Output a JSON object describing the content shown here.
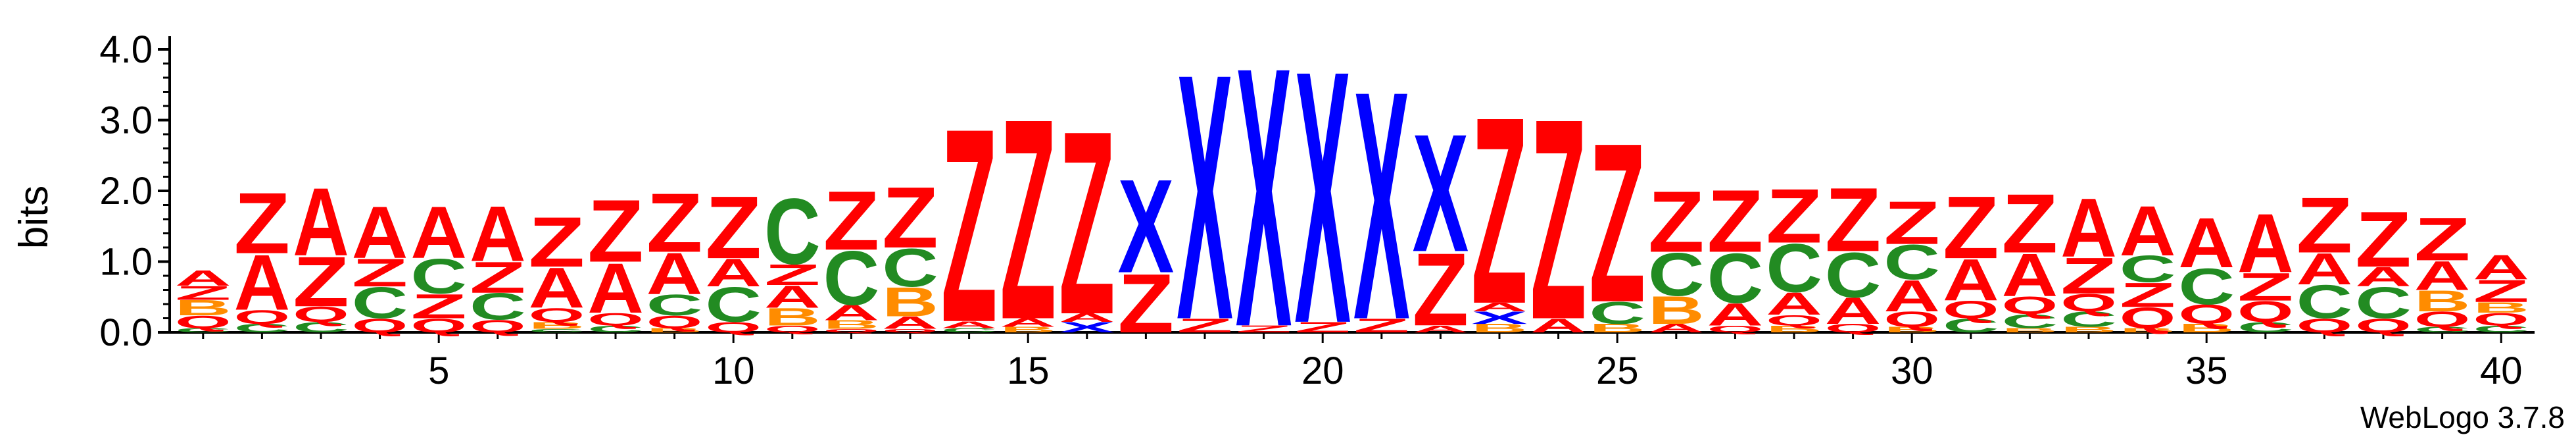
{
  "chart_data": {
    "type": "sequence-logo",
    "ylabel": "bits",
    "ylim": [
      0,
      4.0
    ],
    "y_ticks": [
      "0.0",
      "1.0",
      "2.0",
      "3.0",
      "4.0"
    ],
    "x_ticks": [
      5,
      10,
      15,
      20,
      25,
      30,
      35,
      40
    ],
    "positions": 40,
    "credit": "WebLogo 3.7.8",
    "colors": {
      "A": "#ff0000",
      "Z": "#ff0000",
      "C": "#228b22",
      "Q": "#ff0000",
      "B": "#ff8c00",
      "X": "#0000ff"
    },
    "columns": [
      {
        "pos": 1,
        "letters": [
          [
            "C",
            0.06
          ],
          [
            "Q",
            0.18
          ],
          [
            "B",
            0.22
          ],
          [
            "Z",
            0.2
          ],
          [
            "A",
            0.22
          ]
        ]
      },
      {
        "pos": 2,
        "letters": [
          [
            "C",
            0.12
          ],
          [
            "Q",
            0.2
          ],
          [
            "A",
            0.8
          ],
          [
            "Z",
            0.88
          ]
        ]
      },
      {
        "pos": 3,
        "letters": [
          [
            "C",
            0.15
          ],
          [
            "Q",
            0.22
          ],
          [
            "Z",
            0.72
          ],
          [
            "A",
            0.98
          ]
        ]
      },
      {
        "pos": 4,
        "letters": [
          [
            "Q",
            0.2
          ],
          [
            "C",
            0.45
          ],
          [
            "Z",
            0.4
          ],
          [
            "A",
            0.75
          ]
        ]
      },
      {
        "pos": 5,
        "letters": [
          [
            "Q",
            0.2
          ],
          [
            "Z",
            0.35
          ],
          [
            "C",
            0.5
          ],
          [
            "A",
            0.75
          ]
        ]
      },
      {
        "pos": 6,
        "letters": [
          [
            "Q",
            0.18
          ],
          [
            "C",
            0.38
          ],
          [
            "Z",
            0.45
          ],
          [
            "A",
            0.8
          ]
        ]
      },
      {
        "pos": 7,
        "letters": [
          [
            "C",
            0.05
          ],
          [
            "B",
            0.1
          ],
          [
            "Q",
            0.2
          ],
          [
            "A",
            0.58
          ],
          [
            "Z",
            0.72
          ]
        ]
      },
      {
        "pos": 8,
        "letters": [
          [
            "C",
            0.1
          ],
          [
            "Q",
            0.18
          ],
          [
            "A",
            0.72
          ],
          [
            "Z",
            0.9
          ]
        ]
      },
      {
        "pos": 9,
        "letters": [
          [
            "B",
            0.06
          ],
          [
            "Q",
            0.18
          ],
          [
            "C",
            0.3
          ],
          [
            "A",
            0.6
          ],
          [
            "Z",
            0.85
          ]
        ]
      },
      {
        "pos": 10,
        "letters": [
          [
            "Q",
            0.15
          ],
          [
            "C",
            0.5
          ],
          [
            "A",
            0.4
          ],
          [
            "Z",
            0.9
          ]
        ]
      },
      {
        "pos": 11,
        "letters": [
          [
            "Q",
            0.1
          ],
          [
            "B",
            0.25
          ],
          [
            "A",
            0.32
          ],
          [
            "Z",
            0.3
          ],
          [
            "C",
            0.95
          ]
        ]
      },
      {
        "pos": 12,
        "letters": [
          [
            "Q",
            0.05
          ],
          [
            "B",
            0.12
          ],
          [
            "A",
            0.22
          ],
          [
            "C",
            0.78
          ],
          [
            "Z",
            0.85
          ]
        ]
      },
      {
        "pos": 13,
        "letters": [
          [
            "Q",
            0.05
          ],
          [
            "A",
            0.18
          ],
          [
            "B",
            0.42
          ],
          [
            "C",
            0.55
          ],
          [
            "Z",
            0.88
          ]
        ]
      },
      {
        "pos": 14,
        "letters": [
          [
            "C",
            0.06
          ],
          [
            "A",
            0.1
          ],
          [
            "Z",
            2.8
          ]
        ]
      },
      {
        "pos": 15,
        "letters": [
          [
            "B",
            0.08
          ],
          [
            "A",
            0.12
          ],
          [
            "Z",
            2.9
          ]
        ]
      },
      {
        "pos": 16,
        "letters": [
          [
            "X",
            0.15
          ],
          [
            "A",
            0.12
          ],
          [
            "Z",
            2.65
          ]
        ]
      },
      {
        "pos": 17,
        "letters": [
          [
            "Z",
            0.85
          ],
          [
            "X",
            1.35
          ]
        ]
      },
      {
        "pos": 18,
        "letters": [
          [
            "Z",
            0.2
          ],
          [
            "X",
            3.55
          ]
        ]
      },
      {
        "pos": 19,
        "letters": [
          [
            "Z",
            0.1
          ],
          [
            "X",
            3.75
          ]
        ]
      },
      {
        "pos": 20,
        "letters": [
          [
            "Z",
            0.15
          ],
          [
            "X",
            3.65
          ]
        ]
      },
      {
        "pos": 21,
        "letters": [
          [
            "Z",
            0.2
          ],
          [
            "X",
            3.3
          ]
        ]
      },
      {
        "pos": 22,
        "letters": [
          [
            "A",
            0.1
          ],
          [
            "Z",
            1.05
          ],
          [
            "X",
            1.7
          ]
        ]
      },
      {
        "pos": 23,
        "letters": [
          [
            "B",
            0.12
          ],
          [
            "X",
            0.18
          ],
          [
            "A",
            0.12
          ],
          [
            "Z",
            2.7
          ]
        ]
      },
      {
        "pos": 24,
        "letters": [
          [
            "A",
            0.2
          ],
          [
            "Z",
            2.9
          ]
        ]
      },
      {
        "pos": 25,
        "letters": [
          [
            "B",
            0.12
          ],
          [
            "C",
            0.32
          ],
          [
            "Z",
            2.3
          ]
        ]
      },
      {
        "pos": 26,
        "letters": [
          [
            "A",
            0.12
          ],
          [
            "B",
            0.4
          ],
          [
            "C",
            0.62
          ],
          [
            "Z",
            0.88
          ]
        ]
      },
      {
        "pos": 27,
        "letters": [
          [
            "Q",
            0.1
          ],
          [
            "A",
            0.32
          ],
          [
            "C",
            0.72
          ],
          [
            "Z",
            0.9
          ]
        ]
      },
      {
        "pos": 28,
        "letters": [
          [
            "B",
            0.1
          ],
          [
            "Q",
            0.15
          ],
          [
            "A",
            0.32
          ],
          [
            "C",
            0.7
          ],
          [
            "Z",
            0.78
          ]
        ]
      },
      {
        "pos": 29,
        "letters": [
          [
            "Q",
            0.12
          ],
          [
            "A",
            0.38
          ],
          [
            "C",
            0.65
          ],
          [
            "Z",
            0.92
          ]
        ]
      },
      {
        "pos": 30,
        "letters": [
          [
            "B",
            0.08
          ],
          [
            "Q",
            0.22
          ],
          [
            "A",
            0.45
          ],
          [
            "C",
            0.5
          ],
          [
            "Z",
            0.62
          ]
        ]
      },
      {
        "pos": 31,
        "letters": [
          [
            "C",
            0.2
          ],
          [
            "Q",
            0.25
          ],
          [
            "A",
            0.6
          ],
          [
            "Z",
            0.9
          ]
        ]
      },
      {
        "pos": 32,
        "letters": [
          [
            "B",
            0.06
          ],
          [
            "C",
            0.2
          ],
          [
            "Q",
            0.25
          ],
          [
            "A",
            0.62
          ],
          [
            "Z",
            0.85
          ]
        ]
      },
      {
        "pos": 33,
        "letters": [
          [
            "B",
            0.08
          ],
          [
            "C",
            0.22
          ],
          [
            "Q",
            0.25
          ],
          [
            "Z",
            0.52
          ],
          [
            "A",
            0.85
          ]
        ]
      },
      {
        "pos": 34,
        "letters": [
          [
            "B",
            0.06
          ],
          [
            "Q",
            0.3
          ],
          [
            "Z",
            0.35
          ],
          [
            "C",
            0.38
          ],
          [
            "A",
            0.72
          ]
        ]
      },
      {
        "pos": 35,
        "letters": [
          [
            "B",
            0.12
          ],
          [
            "Q",
            0.28
          ],
          [
            "C",
            0.52
          ],
          [
            "A",
            0.72
          ]
        ]
      },
      {
        "pos": 36,
        "letters": [
          [
            "C",
            0.15
          ],
          [
            "Q",
            0.3
          ],
          [
            "Z",
            0.4
          ],
          [
            "A",
            0.85
          ]
        ]
      },
      {
        "pos": 37,
        "letters": [
          [
            "Q",
            0.2
          ],
          [
            "C",
            0.48
          ],
          [
            "A",
            0.45
          ],
          [
            "Z",
            0.8
          ]
        ]
      },
      {
        "pos": 38,
        "letters": [
          [
            "Q",
            0.2
          ],
          [
            "C",
            0.45
          ],
          [
            "A",
            0.28
          ],
          [
            "Z",
            0.8
          ]
        ]
      },
      {
        "pos": 39,
        "letters": [
          [
            "C",
            0.08
          ],
          [
            "Q",
            0.22
          ],
          [
            "B",
            0.3
          ],
          [
            "A",
            0.42
          ],
          [
            "Z",
            0.62
          ]
        ]
      },
      {
        "pos": 40,
        "letters": [
          [
            "C",
            0.1
          ],
          [
            "Q",
            0.18
          ],
          [
            "B",
            0.15
          ],
          [
            "Z",
            0.32
          ],
          [
            "A",
            0.35
          ]
        ]
      }
    ]
  }
}
